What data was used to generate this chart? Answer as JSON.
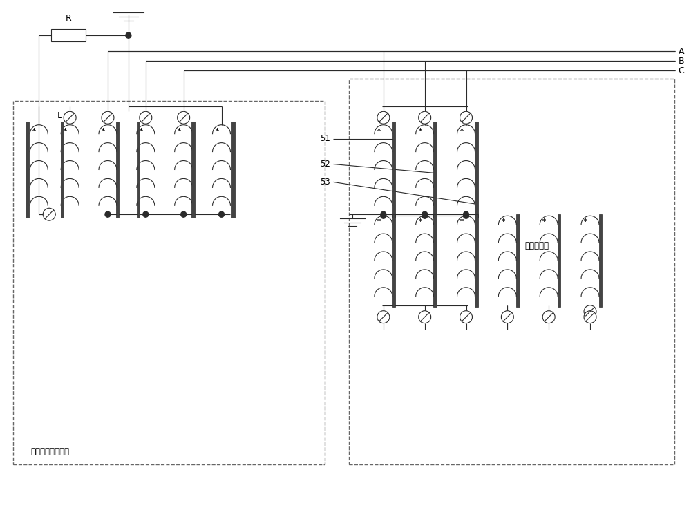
{
  "bg_color": "#ffffff",
  "line_color": "#2a2a2a",
  "label_left": "三相五柱式电抗器",
  "label_right": "电压互感器",
  "label_R": "R",
  "label_L": "L",
  "label_A": "A",
  "label_B": "B",
  "label_C": "C",
  "label_51": "51",
  "label_52": "52",
  "label_53": "53",
  "figw": 10.0,
  "figh": 7.35,
  "dpi": 100
}
